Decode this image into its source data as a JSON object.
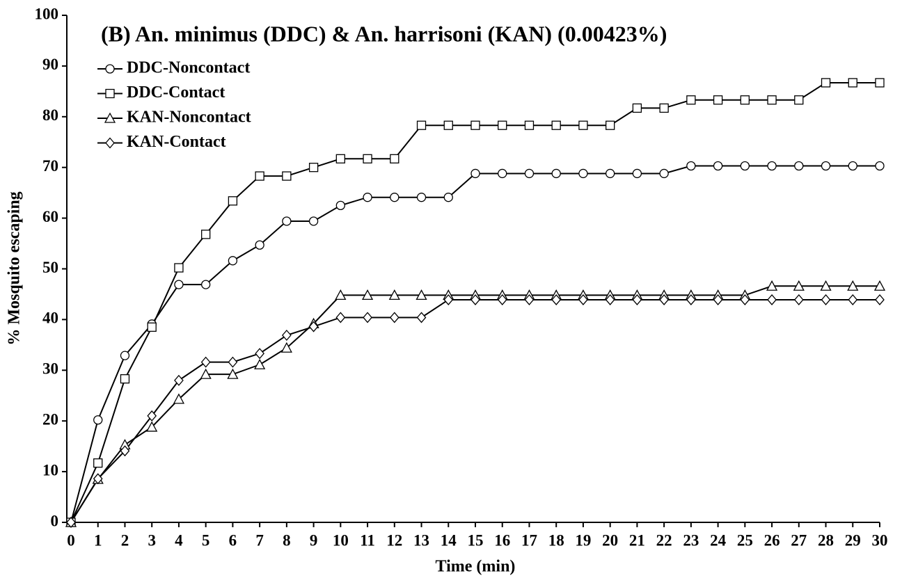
{
  "chart_data": {
    "type": "line",
    "title": "(B) An. minimus (DDC) & An. harrisoni (KAN) (0.00423%)",
    "x_label": "Time (min)",
    "y_label": "% Mosquito escaping",
    "x": [
      0,
      1,
      2,
      3,
      4,
      5,
      6,
      7,
      8,
      9,
      10,
      11,
      12,
      13,
      14,
      15,
      16,
      17,
      18,
      19,
      20,
      21,
      22,
      23,
      24,
      25,
      26,
      27,
      28,
      29,
      30
    ],
    "xlim": [
      0,
      30
    ],
    "xticks": [
      0,
      1,
      2,
      3,
      4,
      5,
      6,
      7,
      8,
      9,
      10,
      11,
      12,
      13,
      14,
      15,
      16,
      17,
      18,
      19,
      20,
      21,
      22,
      23,
      24,
      25,
      26,
      27,
      28,
      29,
      30
    ],
    "ylim": [
      0,
      100
    ],
    "yticks": [
      0,
      10,
      20,
      30,
      40,
      50,
      60,
      70,
      80,
      90,
      100
    ],
    "grid": false,
    "legend": "upper left",
    "series": [
      {
        "name": "DDC-Noncontact",
        "color": "#000000",
        "marker": "circle",
        "values": [
          0,
          20.2,
          32.9,
          39.1,
          46.9,
          46.9,
          51.6,
          54.7,
          59.4,
          59.4,
          62.5,
          64.1,
          64.1,
          64.1,
          64.1,
          68.8,
          68.8,
          68.8,
          68.8,
          68.8,
          68.8,
          68.8,
          68.8,
          70.3,
          70.3,
          70.3,
          70.3,
          70.3,
          70.3,
          70.3,
          70.3
        ]
      },
      {
        "name": "DDC-Contact",
        "color": "#000000",
        "marker": "square",
        "values": [
          0,
          11.7,
          28.3,
          38.5,
          50.2,
          56.8,
          63.4,
          68.3,
          68.3,
          70.0,
          71.7,
          71.7,
          71.7,
          78.3,
          78.3,
          78.3,
          78.3,
          78.3,
          78.3,
          78.3,
          78.3,
          81.7,
          81.7,
          83.3,
          83.3,
          83.3,
          83.3,
          83.3,
          86.7,
          86.7,
          86.7
        ]
      },
      {
        "name": "KAN-Noncontact",
        "color": "#000000",
        "marker": "triangle",
        "values": [
          0,
          8.5,
          15.3,
          18.8,
          24.3,
          29.2,
          29.2,
          31.1,
          34.4,
          39.2,
          44.8,
          44.8,
          44.8,
          44.8,
          44.8,
          44.8,
          44.8,
          44.8,
          44.8,
          44.8,
          44.8,
          44.8,
          44.8,
          44.8,
          44.8,
          44.8,
          46.6,
          46.6,
          46.6,
          46.6,
          46.6
        ]
      },
      {
        "name": "KAN-Contact",
        "color": "#000000",
        "marker": "diamond",
        "values": [
          0,
          8.6,
          14.1,
          21.0,
          28.0,
          31.6,
          31.6,
          33.3,
          36.9,
          38.6,
          40.4,
          40.4,
          40.4,
          40.4,
          43.9,
          43.9,
          43.9,
          43.9,
          43.9,
          43.9,
          43.9,
          43.9,
          43.9,
          43.9,
          43.9,
          43.9,
          43.9,
          43.9,
          43.9,
          43.9,
          43.9
        ]
      }
    ]
  }
}
